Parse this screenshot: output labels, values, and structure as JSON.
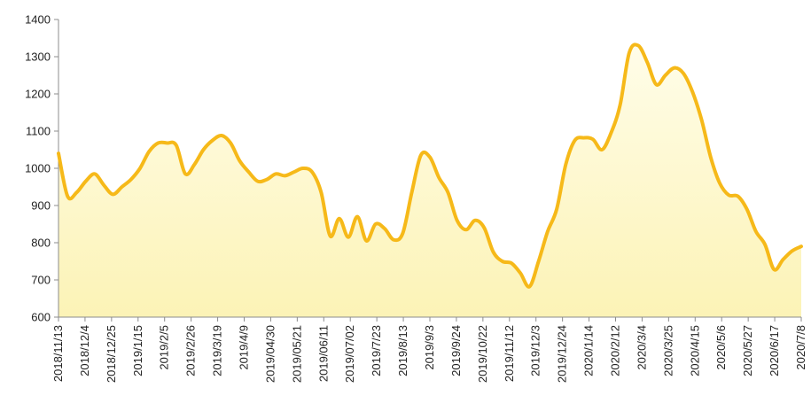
{
  "chart_data": {
    "type": "line",
    "title": "",
    "xlabel": "",
    "ylabel": "",
    "ylim": [
      600,
      1400
    ],
    "yticks": [
      600,
      700,
      800,
      900,
      1000,
      1100,
      1200,
      1300,
      1400
    ],
    "grid": false,
    "legend": "none",
    "line_color": "#f6b919",
    "fill_gradient": [
      "#fffde9",
      "#fcf3b6"
    ],
    "xtick_labels": [
      "2018/11/13",
      "2018/12/4",
      "2018/12/25",
      "2019/1/15",
      "2019/2/5",
      "2019/2/26",
      "2019/3/19",
      "2019/4/9",
      "2019/04/30",
      "2019/05/21",
      "2019/06/11",
      "2019/07/02",
      "2019/7/23",
      "2019/8/13",
      "2019/9/3",
      "2019/9/24",
      "2019/10/22",
      "2019/11/12",
      "2019/12/3",
      "2019/12/24",
      "2020/1/14",
      "2020/2/12",
      "2020/3/4",
      "2020/3/25",
      "2020/4/15",
      "2020/5/6",
      "2020/5/27",
      "2020/6/17",
      "2020/7/8"
    ],
    "series": [
      {
        "values": [
          1040,
          925,
          935,
          965,
          985,
          955,
          930,
          950,
          970,
          1000,
          1045,
          1068,
          1068,
          1062,
          985,
          1010,
          1050,
          1075,
          1088,
          1068,
          1020,
          990,
          965,
          970,
          985,
          980,
          990,
          1000,
          990,
          935,
          818,
          865,
          815,
          870,
          805,
          850,
          838,
          808,
          825,
          935,
          1035,
          1030,
          975,
          935,
          860,
          835,
          860,
          840,
          775,
          750,
          745,
          718,
          682,
          750,
          830,
          890,
          1010,
          1075,
          1082,
          1078,
          1050,
          1095,
          1170,
          1310,
          1330,
          1285,
          1225,
          1250,
          1270,
          1255,
          1205,
          1130,
          1030,
          960,
          928,
          925,
          890,
          830,
          795,
          728,
          755,
          778,
          790
        ]
      }
    ]
  }
}
